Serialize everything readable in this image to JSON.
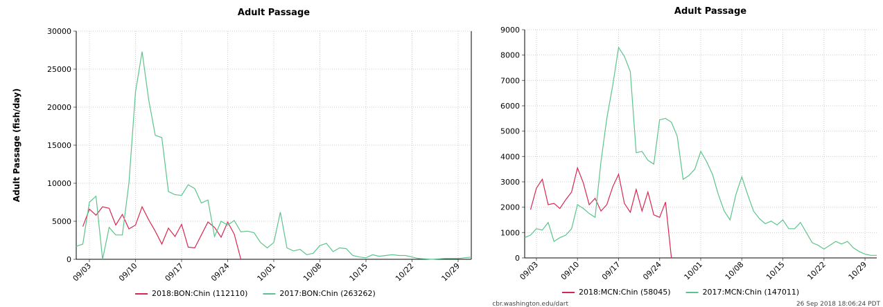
{
  "chart_data": [
    {
      "type": "line",
      "title": "Adult Passage",
      "y_label": "Adult Passage (fish/day)",
      "categories": [
        null,
        null,
        "09/03",
        null,
        null,
        null,
        null,
        null,
        null,
        "09/10",
        null,
        null,
        null,
        null,
        null,
        null,
        "09/17",
        null,
        null,
        null,
        null,
        null,
        null,
        "09/24",
        null,
        null,
        null,
        null,
        null,
        null,
        "10/01",
        null,
        null,
        null,
        null,
        null,
        null,
        "10/08",
        null,
        null,
        null,
        null,
        null,
        null,
        "10/15",
        null,
        null,
        null,
        null,
        null,
        null,
        "10/22",
        null,
        null,
        null,
        null,
        null,
        null,
        "10/29",
        null,
        null
      ],
      "ylim": [
        0,
        30000
      ],
      "yticks": [
        0,
        5000,
        10000,
        15000,
        20000,
        25000,
        30000
      ],
      "grid": true,
      "series": [
        {
          "name": "2018:BON:Chin (112110)",
          "color": "#d9264f",
          "values": [
            null,
            4300,
            6600,
            5800,
            6900,
            6700,
            4500,
            5900,
            4000,
            4500,
            6900,
            5200,
            3700,
            2000,
            4100,
            3000,
            4600,
            1600,
            1500,
            3200,
            4900,
            4200,
            2900,
            4900,
            3300,
            0,
            null,
            null,
            null,
            null,
            null,
            null,
            null,
            null,
            null,
            null,
            null,
            null,
            null,
            null,
            null,
            null,
            null,
            null,
            null,
            null,
            null,
            null,
            null,
            null,
            null,
            null,
            null,
            null,
            null,
            null,
            null,
            null,
            null,
            null,
            null
          ]
        },
        {
          "name": "2017:BON:Chin (263262)",
          "color": "#5cc48a",
          "values": [
            1700,
            2000,
            7500,
            8300,
            0,
            4200,
            3200,
            3200,
            10000,
            22000,
            27300,
            21000,
            16300,
            16000,
            8900,
            8500,
            8400,
            9800,
            9300,
            7400,
            7800,
            3000,
            5000,
            4500,
            5100,
            3600,
            3700,
            3500,
            2200,
            1500,
            2200,
            6200,
            1500,
            1100,
            1300,
            600,
            800,
            1800,
            2100,
            1000,
            1500,
            1400,
            500,
            300,
            200,
            600,
            400,
            500,
            600,
            500,
            500,
            300,
            100,
            50,
            0,
            50,
            100,
            100,
            100,
            200,
            300
          ]
        }
      ]
    },
    {
      "type": "line",
      "title": "Adult Passage",
      "categories": [
        null,
        null,
        "09/03",
        null,
        null,
        null,
        null,
        null,
        null,
        "09/10",
        null,
        null,
        null,
        null,
        null,
        null,
        "09/17",
        null,
        null,
        null,
        null,
        null,
        null,
        "09/24",
        null,
        null,
        null,
        null,
        null,
        null,
        "10/01",
        null,
        null,
        null,
        null,
        null,
        null,
        "10/08",
        null,
        null,
        null,
        null,
        null,
        null,
        "10/15",
        null,
        null,
        null,
        null,
        null,
        null,
        "10/22",
        null,
        null,
        null,
        null,
        null,
        null,
        "10/29",
        null,
        null
      ],
      "ylim": [
        0,
        9000
      ],
      "yticks": [
        0,
        1000,
        2000,
        3000,
        4000,
        5000,
        6000,
        7000,
        8000,
        9000
      ],
      "grid": true,
      "series": [
        {
          "name": "2018:MCN:Chin (58045)",
          "color": "#d9264f",
          "values": [
            null,
            1900,
            2750,
            3100,
            2100,
            2150,
            1950,
            2300,
            2600,
            3550,
            2950,
            2100,
            2350,
            1850,
            2100,
            2800,
            3300,
            2150,
            1800,
            2700,
            1850,
            2600,
            1700,
            1600,
            2200,
            0,
            null,
            null,
            null,
            null,
            null,
            null,
            null,
            null,
            null,
            null,
            null,
            null,
            null,
            null,
            null,
            null,
            null,
            null,
            null,
            null,
            null,
            null,
            null,
            null,
            null,
            null,
            null,
            null,
            null,
            null,
            null,
            null,
            null,
            null,
            null
          ]
        },
        {
          "name": "2017:MCN:Chin (147011)",
          "color": "#5cc48a",
          "values": [
            800,
            900,
            1150,
            1100,
            1400,
            650,
            800,
            900,
            1150,
            2100,
            1950,
            1750,
            1600,
            3800,
            5500,
            6800,
            8300,
            7950,
            7350,
            4150,
            4200,
            3850,
            3700,
            5450,
            5500,
            5350,
            4800,
            3100,
            3250,
            3500,
            4200,
            3800,
            3300,
            2500,
            1850,
            1500,
            2500,
            3200,
            2500,
            1850,
            1550,
            1350,
            1450,
            1300,
            1500,
            1150,
            1150,
            1400,
            1000,
            600,
            500,
            350,
            500,
            650,
            550,
            650,
            400,
            250,
            150,
            100,
            100
          ]
        }
      ]
    }
  ],
  "footer": {
    "site": "cbr.washington.edu/dart",
    "timestamp": "26 Sep 2018 18:06:24 PDT"
  }
}
